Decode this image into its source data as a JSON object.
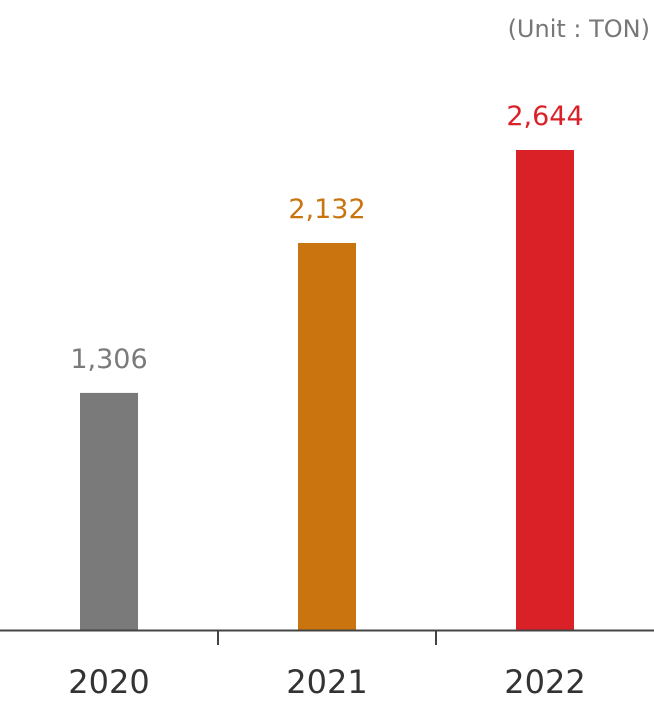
{
  "chart_data": {
    "type": "bar",
    "unit_label": "(Unit : TON)",
    "categories": [
      "2020",
      "2021",
      "2022"
    ],
    "values": [
      1306,
      2132,
      2644
    ],
    "value_labels": [
      "1,306",
      "2,132",
      "2,644"
    ],
    "bar_colors": [
      "#7a7a7a",
      "#c9740f",
      "#db2128"
    ],
    "label_colors": [
      "#7a7a7a",
      "#c9740f",
      "#db2128"
    ],
    "ylim": [
      0,
      2644
    ],
    "grid": false,
    "legend": "none"
  }
}
